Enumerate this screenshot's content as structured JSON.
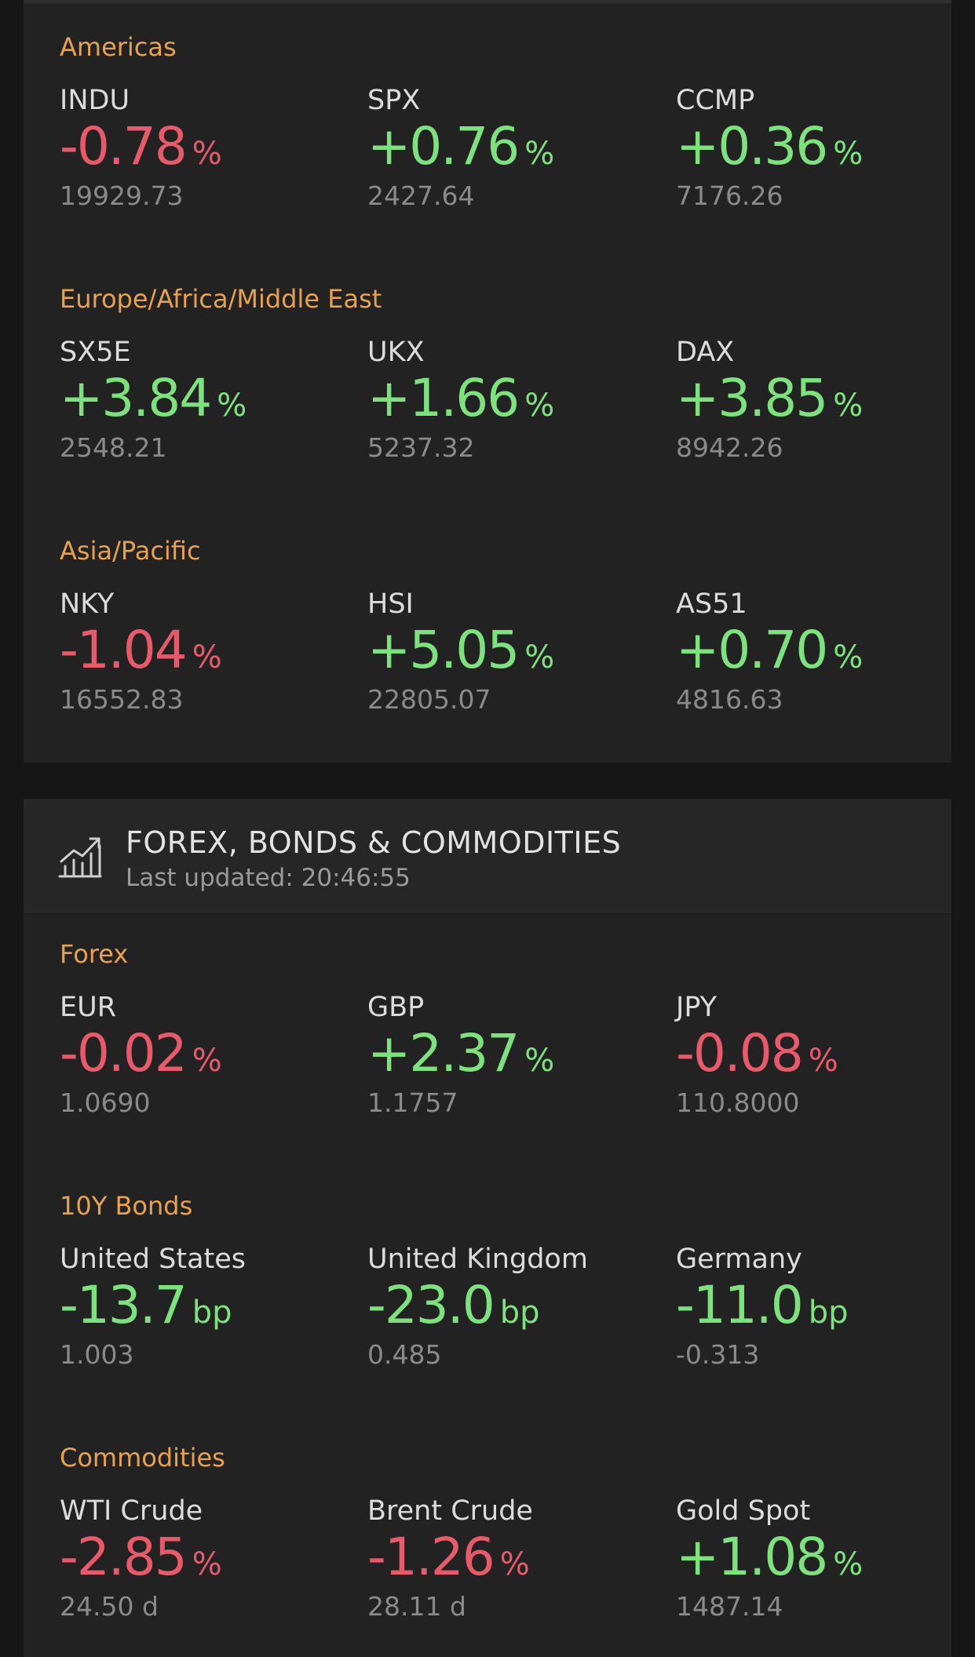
{
  "indices": {
    "groups": [
      {
        "label": "Americas",
        "items": [
          {
            "name": "INDU",
            "change": "-0.78",
            "unit": "%",
            "value": "19929.73",
            "direction": "down"
          },
          {
            "name": "SPX",
            "change": "+0.76",
            "unit": "%",
            "value": "2427.64",
            "direction": "up"
          },
          {
            "name": "CCMP",
            "change": "+0.36",
            "unit": "%",
            "value": "7176.26",
            "direction": "up"
          }
        ]
      },
      {
        "label": "Europe/Africa/Middle East",
        "items": [
          {
            "name": "SX5E",
            "change": "+3.84",
            "unit": "%",
            "value": "2548.21",
            "direction": "up"
          },
          {
            "name": "UKX",
            "change": "+1.66",
            "unit": "%",
            "value": "5237.32",
            "direction": "up"
          },
          {
            "name": "DAX",
            "change": "+3.85",
            "unit": "%",
            "value": "8942.26",
            "direction": "up"
          }
        ]
      },
      {
        "label": "Asia/Pacific",
        "items": [
          {
            "name": "NKY",
            "change": "-1.04",
            "unit": "%",
            "value": "16552.83",
            "direction": "down"
          },
          {
            "name": "HSI",
            "change": "+5.05",
            "unit": "%",
            "value": "22805.07",
            "direction": "up"
          },
          {
            "name": "AS51",
            "change": "+0.70",
            "unit": "%",
            "value": "4816.63",
            "direction": "up"
          }
        ]
      }
    ]
  },
  "fbc": {
    "icon": "chart-trend-icon",
    "title": "FOREX, BONDS & COMMODITIES",
    "last_updated": "Last updated: 20:46:55",
    "groups": [
      {
        "label": "Forex",
        "items": [
          {
            "name": "EUR",
            "change": "-0.02",
            "unit": "%",
            "value": "1.0690",
            "direction": "down"
          },
          {
            "name": "GBP",
            "change": "+2.37",
            "unit": "%",
            "value": "1.1757",
            "direction": "up"
          },
          {
            "name": "JPY",
            "change": "-0.08",
            "unit": "%",
            "value": "110.8000",
            "direction": "down"
          }
        ]
      },
      {
        "label": "10Y Bonds",
        "items": [
          {
            "name": "United States",
            "change": "-13.7",
            "unit": "bp",
            "value": "1.003",
            "direction": "up"
          },
          {
            "name": "United Kingdom",
            "change": "-23.0",
            "unit": "bp",
            "value": "0.485",
            "direction": "up"
          },
          {
            "name": "Germany",
            "change": "-11.0",
            "unit": "bp",
            "value": "-0.313",
            "direction": "up"
          }
        ]
      },
      {
        "label": "Commodities",
        "items": [
          {
            "name": "WTI Crude",
            "change": "-2.85",
            "unit": "%",
            "value": "24.50 d",
            "direction": "down"
          },
          {
            "name": "Brent Crude",
            "change": "-1.26",
            "unit": "%",
            "value": "28.11 d",
            "direction": "down"
          },
          {
            "name": "Gold Spot",
            "change": "+1.08",
            "unit": "%",
            "value": "1487.14",
            "direction": "up"
          }
        ]
      }
    ]
  },
  "colors": {
    "up": "#7ce27c",
    "down": "#e8596a",
    "section_label": "#e8a24a",
    "background": "#161616",
    "card": "#222222"
  }
}
